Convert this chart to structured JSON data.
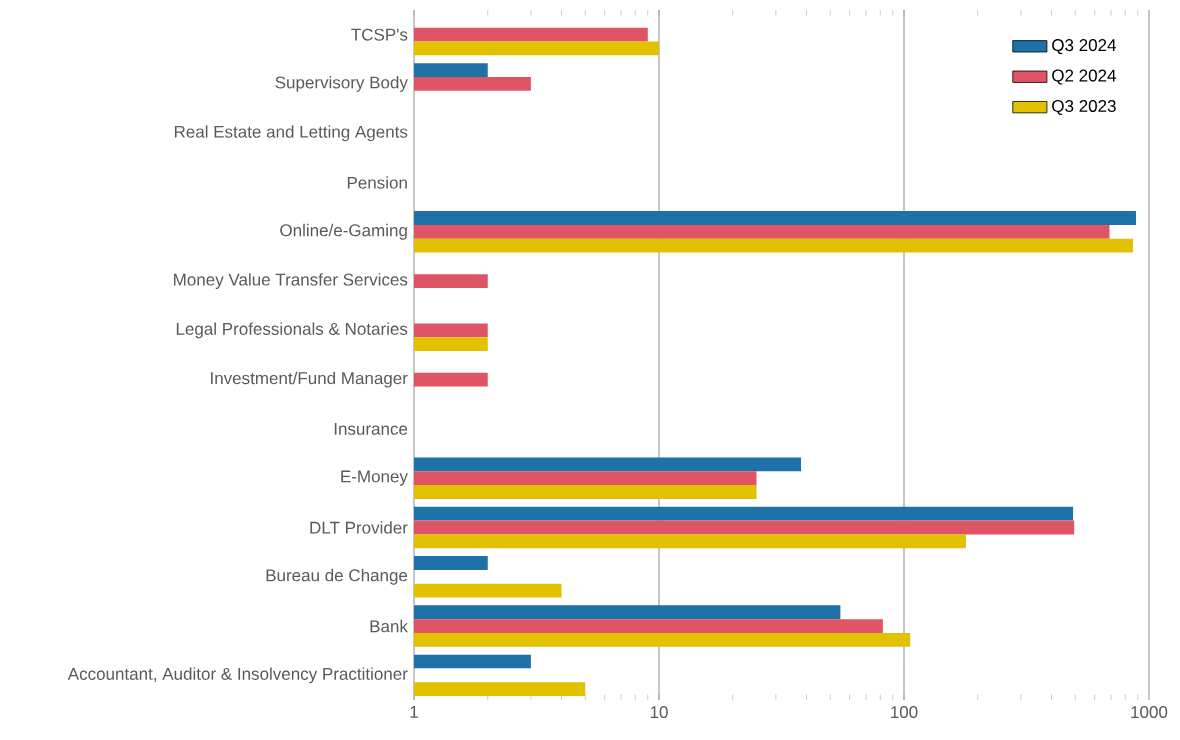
{
  "chart_data": {
    "type": "bar",
    "orientation": "horizontal",
    "log": "x",
    "grid": "x",
    "legend": "top right",
    "categories": [
      "TCSP's",
      "Supervisory Body",
      "Real Estate and Letting Agents",
      "Pension",
      "Online/e-Gaming",
      "Money Value Transfer Services",
      "Legal Professionals & Notaries",
      "Investment/Fund Manager",
      "Insurance",
      "E-Money",
      "DLT Provider",
      "Bureau de Change",
      "Bank",
      "Accountant, Auditor & Insolvency Practitioner"
    ],
    "series": [
      {
        "name": "Q3 2024",
        "color": "#1f72a8",
        "values": [
          null,
          2,
          null,
          null,
          885,
          null,
          null,
          null,
          null,
          38,
          490,
          2,
          55,
          3
        ]
      },
      {
        "name": "Q2 2024",
        "color": "#e05565",
        "values": [
          9,
          3,
          null,
          null,
          690,
          2,
          2,
          2,
          null,
          25,
          495,
          null,
          82,
          null
        ]
      },
      {
        "name": "Q3 2023",
        "color": "#e2c100",
        "values": [
          10,
          null,
          null,
          null,
          860,
          null,
          2,
          null,
          null,
          25,
          179,
          4,
          106,
          5
        ]
      }
    ],
    "xlim": [
      1,
      1000
    ],
    "xticks": [
      1,
      10,
      100,
      1000
    ]
  }
}
